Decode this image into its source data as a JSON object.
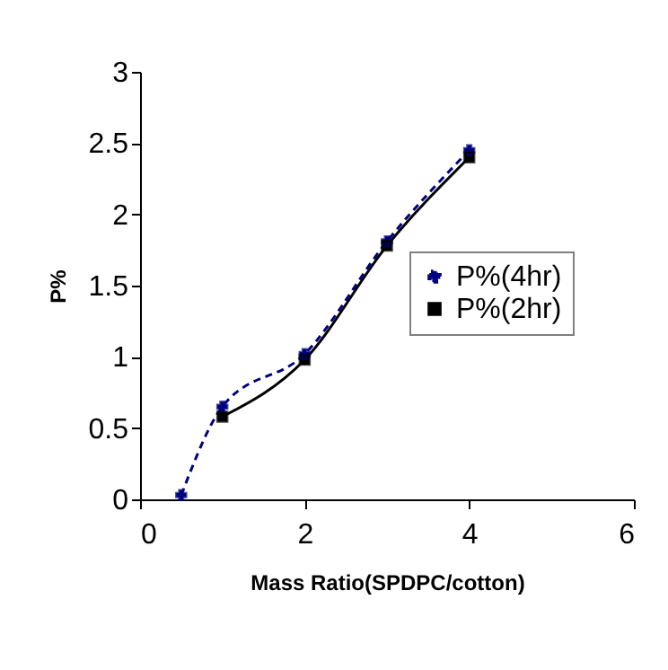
{
  "chart_data": {
    "type": "line",
    "xlabel": "Mass Ratio(SPDPC/cotton)",
    "ylabel": "P%",
    "xlim": [
      0,
      6
    ],
    "xticks": [
      0,
      2,
      4,
      6
    ],
    "ylim": [
      0,
      3
    ],
    "yticks": [
      0,
      0.5,
      1,
      1.5,
      2,
      2.5,
      3
    ],
    "grid": false,
    "legend": "right",
    "series": [
      {
        "name": "P%(4hr)",
        "color": "#000080",
        "x": [
          0.5,
          1,
          2,
          3,
          4
        ],
        "values": [
          0.03,
          0.65,
          1.02,
          1.81,
          2.45
        ],
        "marker": "cross",
        "line_style": "dashed"
      },
      {
        "name": "P%(2hr)",
        "color": "#000000",
        "x": [
          1,
          2,
          3,
          4
        ],
        "values": [
          0.58,
          0.98,
          1.78,
          2.4
        ],
        "marker": "square",
        "line_style": "solid"
      }
    ]
  }
}
